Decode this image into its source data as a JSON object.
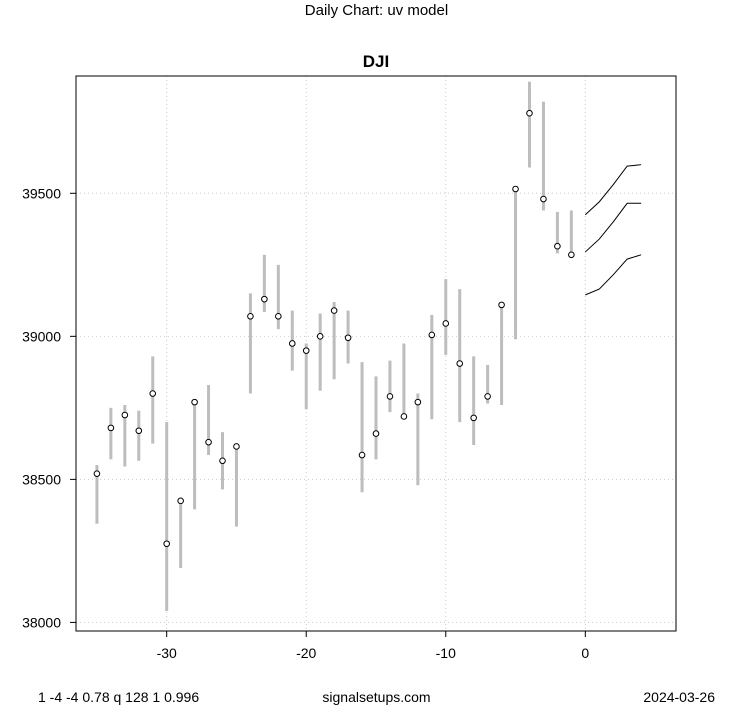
{
  "header": {
    "suptitle": "Daily Chart: uv model"
  },
  "footer": {
    "left": "1 -4 -4 0.78 q 128 1 0.996",
    "center": "signalsetups.com",
    "right": "2024-03-26"
  },
  "chart_data": {
    "type": "line",
    "title": "DJI",
    "xlabel": "",
    "ylabel": "",
    "xlim": [
      -36.5,
      6.5
    ],
    "ylim": [
      37970,
      39910
    ],
    "x_ticks": [
      -30,
      -20,
      -10,
      0
    ],
    "y_ticks": [
      38000,
      38500,
      39000,
      39500
    ],
    "grid": true,
    "colors": {
      "range_bar": "#bdbdbd",
      "close_point": "#000000",
      "forecast_line": "#000000",
      "grid": "#cccccc"
    },
    "bars": [
      {
        "x": -35,
        "low": 38345,
        "high": 38550,
        "close": 38520
      },
      {
        "x": -34,
        "low": 38570,
        "high": 38750,
        "close": 38680
      },
      {
        "x": -33,
        "low": 38545,
        "high": 38760,
        "close": 38725
      },
      {
        "x": -32,
        "low": 38565,
        "high": 38740,
        "close": 38670
      },
      {
        "x": -31,
        "low": 38625,
        "high": 38930,
        "close": 38800
      },
      {
        "x": -30,
        "low": 38040,
        "high": 38700,
        "close": 38275
      },
      {
        "x": -29,
        "low": 38190,
        "high": 38435,
        "close": 38425
      },
      {
        "x": -28,
        "low": 38395,
        "high": 38780,
        "close": 38770
      },
      {
        "x": -27,
        "low": 38585,
        "high": 38830,
        "close": 38630
      },
      {
        "x": -26,
        "low": 38465,
        "high": 38665,
        "close": 38565
      },
      {
        "x": -25,
        "low": 38335,
        "high": 38620,
        "close": 38615
      },
      {
        "x": -24,
        "low": 38800,
        "high": 39150,
        "close": 39070
      },
      {
        "x": -23,
        "low": 39085,
        "high": 39285,
        "close": 39130
      },
      {
        "x": -22,
        "low": 39025,
        "high": 39250,
        "close": 39070
      },
      {
        "x": -21,
        "low": 38880,
        "high": 39090,
        "close": 38975
      },
      {
        "x": -20,
        "low": 38745,
        "high": 38975,
        "close": 38950
      },
      {
        "x": -19,
        "low": 38810,
        "high": 39080,
        "close": 39000
      },
      {
        "x": -18,
        "low": 38850,
        "high": 39120,
        "close": 39090
      },
      {
        "x": -17,
        "low": 38905,
        "high": 39090,
        "close": 38995
      },
      {
        "x": -16,
        "low": 38455,
        "high": 38910,
        "close": 38585
      },
      {
        "x": -15,
        "low": 38570,
        "high": 38860,
        "close": 38660
      },
      {
        "x": -14,
        "low": 38735,
        "high": 38915,
        "close": 38790
      },
      {
        "x": -13,
        "low": 38710,
        "high": 38975,
        "close": 38720
      },
      {
        "x": -12,
        "low": 38480,
        "high": 38800,
        "close": 38770
      },
      {
        "x": -11,
        "low": 38710,
        "high": 39075,
        "close": 39005
      },
      {
        "x": -10,
        "low": 38935,
        "high": 39200,
        "close": 39045
      },
      {
        "x": -9,
        "low": 38700,
        "high": 39165,
        "close": 38905
      },
      {
        "x": -8,
        "low": 38620,
        "high": 38930,
        "close": 38715
      },
      {
        "x": -7,
        "low": 38765,
        "high": 38900,
        "close": 38790
      },
      {
        "x": -6,
        "low": 38760,
        "high": 39115,
        "close": 39110
      },
      {
        "x": -5,
        "low": 38990,
        "high": 39525,
        "close": 39515
      },
      {
        "x": -4,
        "low": 39590,
        "high": 39890,
        "close": 39780
      },
      {
        "x": -3,
        "low": 39440,
        "high": 39820,
        "close": 39480
      },
      {
        "x": -2,
        "low": 39290,
        "high": 39435,
        "close": 39315
      },
      {
        "x": -1,
        "low": 39275,
        "high": 39440,
        "close": 39285
      }
    ],
    "forecast": [
      {
        "name": "upper",
        "points": [
          [
            0,
            39425
          ],
          [
            1,
            39470
          ],
          [
            2,
            39530
          ],
          [
            3,
            39595
          ],
          [
            4,
            39600
          ]
        ]
      },
      {
        "name": "middle",
        "points": [
          [
            0,
            39295
          ],
          [
            1,
            39340
          ],
          [
            2,
            39400
          ],
          [
            3,
            39465
          ],
          [
            4,
            39465
          ]
        ]
      },
      {
        "name": "lower",
        "points": [
          [
            0,
            39145
          ],
          [
            1,
            39165
          ],
          [
            2,
            39215
          ],
          [
            3,
            39270
          ],
          [
            4,
            39285
          ]
        ]
      }
    ]
  }
}
